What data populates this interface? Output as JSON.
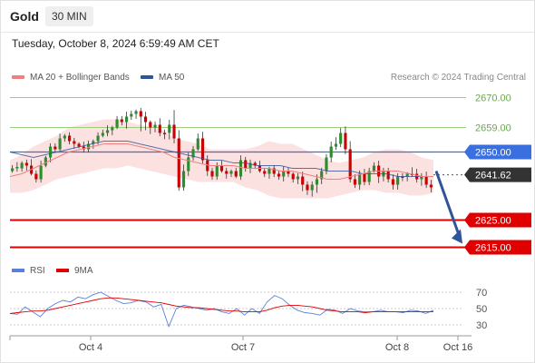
{
  "header": {
    "symbol": "Gold",
    "timeframe": "30 MIN"
  },
  "timestamp": "Tuesday, October 8, 2024 6:59:49 AM CET",
  "legend": {
    "ma20": {
      "label": "MA 20 + Bollinger Bands",
      "color": "#f08080"
    },
    "ma50": {
      "label": "MA 50",
      "color": "#2f5597"
    }
  },
  "credit": "Research © 2024 Trading Central",
  "rsi_legend": {
    "rsi": {
      "label": "RSI",
      "color": "#5b7fd9"
    },
    "ma9": {
      "label": "9MA",
      "color": "#e00000"
    }
  },
  "chart_data": [
    {
      "type": "candlestick",
      "title": "Gold",
      "timeframe": "30 MIN",
      "x_ticks": [
        "Oct 4",
        "Oct 7",
        "Oct 8",
        "Oct 16"
      ],
      "ylim": [
        2605,
        2680
      ],
      "levels": [
        {
          "value": 2670.0,
          "label": "2670.00",
          "color": "#9ccf7c",
          "kind": "resistance"
        },
        {
          "value": 2659.0,
          "label": "2659.00",
          "color": "#9ccf7c",
          "kind": "resistance"
        },
        {
          "value": 2650.0,
          "label": "2650.00",
          "color": "#3a6fe0",
          "kind": "pivot"
        },
        {
          "value": 2641.62,
          "label": "2641.62",
          "color": "#333333",
          "kind": "last"
        },
        {
          "value": 2625.0,
          "label": "2625.00",
          "color": "#e00000",
          "kind": "target"
        },
        {
          "value": 2615.0,
          "label": "2615.00",
          "color": "#e00000",
          "kind": "target"
        }
      ],
      "forecast": {
        "from": 2643,
        "to": 2615
      },
      "close_series": [
        2644,
        2644,
        2646,
        2645,
        2642,
        2640,
        2645,
        2648,
        2652,
        2651,
        2655,
        2656,
        2654,
        2653,
        2652,
        2651,
        2653,
        2654,
        2656,
        2657,
        2658,
        2659,
        2662,
        2661,
        2663,
        2664,
        2665,
        2663,
        2661,
        2659,
        2660,
        2657,
        2657,
        2660,
        2655,
        2637,
        2643,
        2648,
        2651,
        2655,
        2647,
        2643,
        2641,
        2645,
        2643,
        2642,
        2643,
        2641,
        2647,
        2644,
        2646,
        2645,
        2643,
        2642,
        2644,
        2642,
        2641,
        2643,
        2642,
        2640,
        2641,
        2638,
        2636,
        2638,
        2640,
        2643,
        2648,
        2652,
        2653,
        2657,
        2651,
        2640,
        2638,
        2642,
        2639,
        2643,
        2645,
        2641,
        2643,
        2640,
        2638,
        2641,
        2641,
        2642,
        2642,
        2640,
        2641,
        2638,
        2637
      ],
      "ma20": [
        2641,
        2642,
        2644,
        2646,
        2648,
        2650,
        2651,
        2652,
        2653,
        2653,
        2653,
        2652,
        2651,
        2650,
        2648,
        2647,
        2646,
        2645,
        2645,
        2645,
        2644,
        2644,
        2644,
        2643,
        2643,
        2642,
        2641,
        2640,
        2640,
        2641,
        2642,
        2643,
        2643,
        2643,
        2642,
        2641,
        2641
      ],
      "ma50": [
        2650,
        2649,
        2648,
        2649,
        2650,
        2651,
        2652,
        2653,
        2654,
        2654,
        2654,
        2653,
        2652,
        2651,
        2650,
        2649,
        2648,
        2647,
        2647,
        2646,
        2646,
        2645,
        2645,
        2645,
        2644,
        2644,
        2644,
        2643,
        2643,
        2643,
        2642,
        2642,
        2642,
        2641,
        2641,
        2641,
        2641
      ]
    },
    {
      "type": "line",
      "title": "RSI",
      "ylim": [
        20,
        80
      ],
      "y_ticks": [
        70,
        50,
        30
      ],
      "series": [
        {
          "name": "RSI",
          "values": [
            44,
            43,
            52,
            46,
            40,
            50,
            56,
            60,
            58,
            64,
            62,
            67,
            70,
            65,
            60,
            56,
            57,
            60,
            58,
            52,
            55,
            28,
            50,
            54,
            52,
            50,
            48,
            50,
            46,
            44,
            50,
            42,
            50,
            44,
            58,
            66,
            62,
            54,
            48,
            45,
            44,
            42,
            49,
            48,
            44,
            50,
            47,
            46,
            46,
            48,
            46,
            46,
            45,
            48,
            47,
            44,
            48
          ]
        },
        {
          "name": "9MA",
          "values": [
            44,
            45,
            46,
            47,
            47,
            48,
            50,
            52,
            54,
            56,
            58,
            60,
            62,
            63,
            63,
            62,
            61,
            60,
            59,
            58,
            57,
            55,
            53,
            52,
            51,
            51,
            50,
            49,
            48,
            47,
            47,
            46,
            46,
            46,
            48,
            51,
            53,
            54,
            54,
            53,
            52,
            50,
            48,
            47,
            46,
            46,
            46,
            45,
            46,
            46,
            46,
            46,
            46,
            46,
            46,
            46,
            46
          ]
        }
      ]
    }
  ]
}
